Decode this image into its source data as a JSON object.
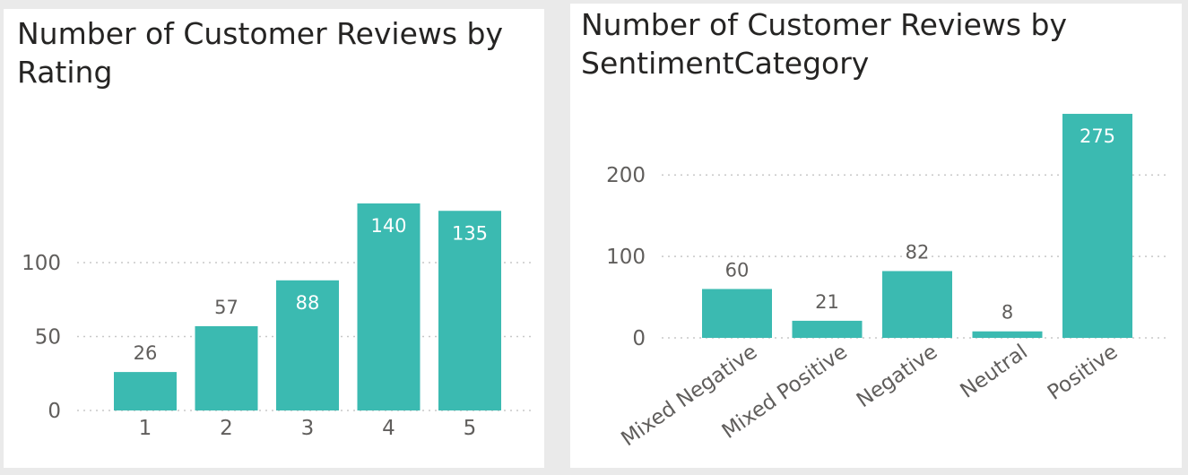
{
  "colors": {
    "bar": "#3bbab1",
    "label_outside": "#605e5c",
    "label_inside": "#ffffff"
  },
  "chart_data": [
    {
      "type": "bar",
      "title": "Number of Customer Reviews by Rating",
      "categories": [
        "1",
        "2",
        "3",
        "4",
        "5"
      ],
      "values": [
        26,
        57,
        88,
        140,
        135
      ],
      "yticks": [
        0,
        50,
        100
      ],
      "ylim": [
        0,
        140
      ],
      "grid": true,
      "data_labels": true
    },
    {
      "type": "bar",
      "title": "Number of Customer Reviews by SentimentCategory",
      "categories": [
        "Mixed Negative",
        "Mixed Positive",
        "Negative",
        "Neutral",
        "Positive"
      ],
      "values": [
        60,
        21,
        82,
        8,
        275
      ],
      "yticks": [
        0,
        100,
        200
      ],
      "ylim": [
        0,
        275
      ],
      "grid": true,
      "data_labels": true
    }
  ]
}
